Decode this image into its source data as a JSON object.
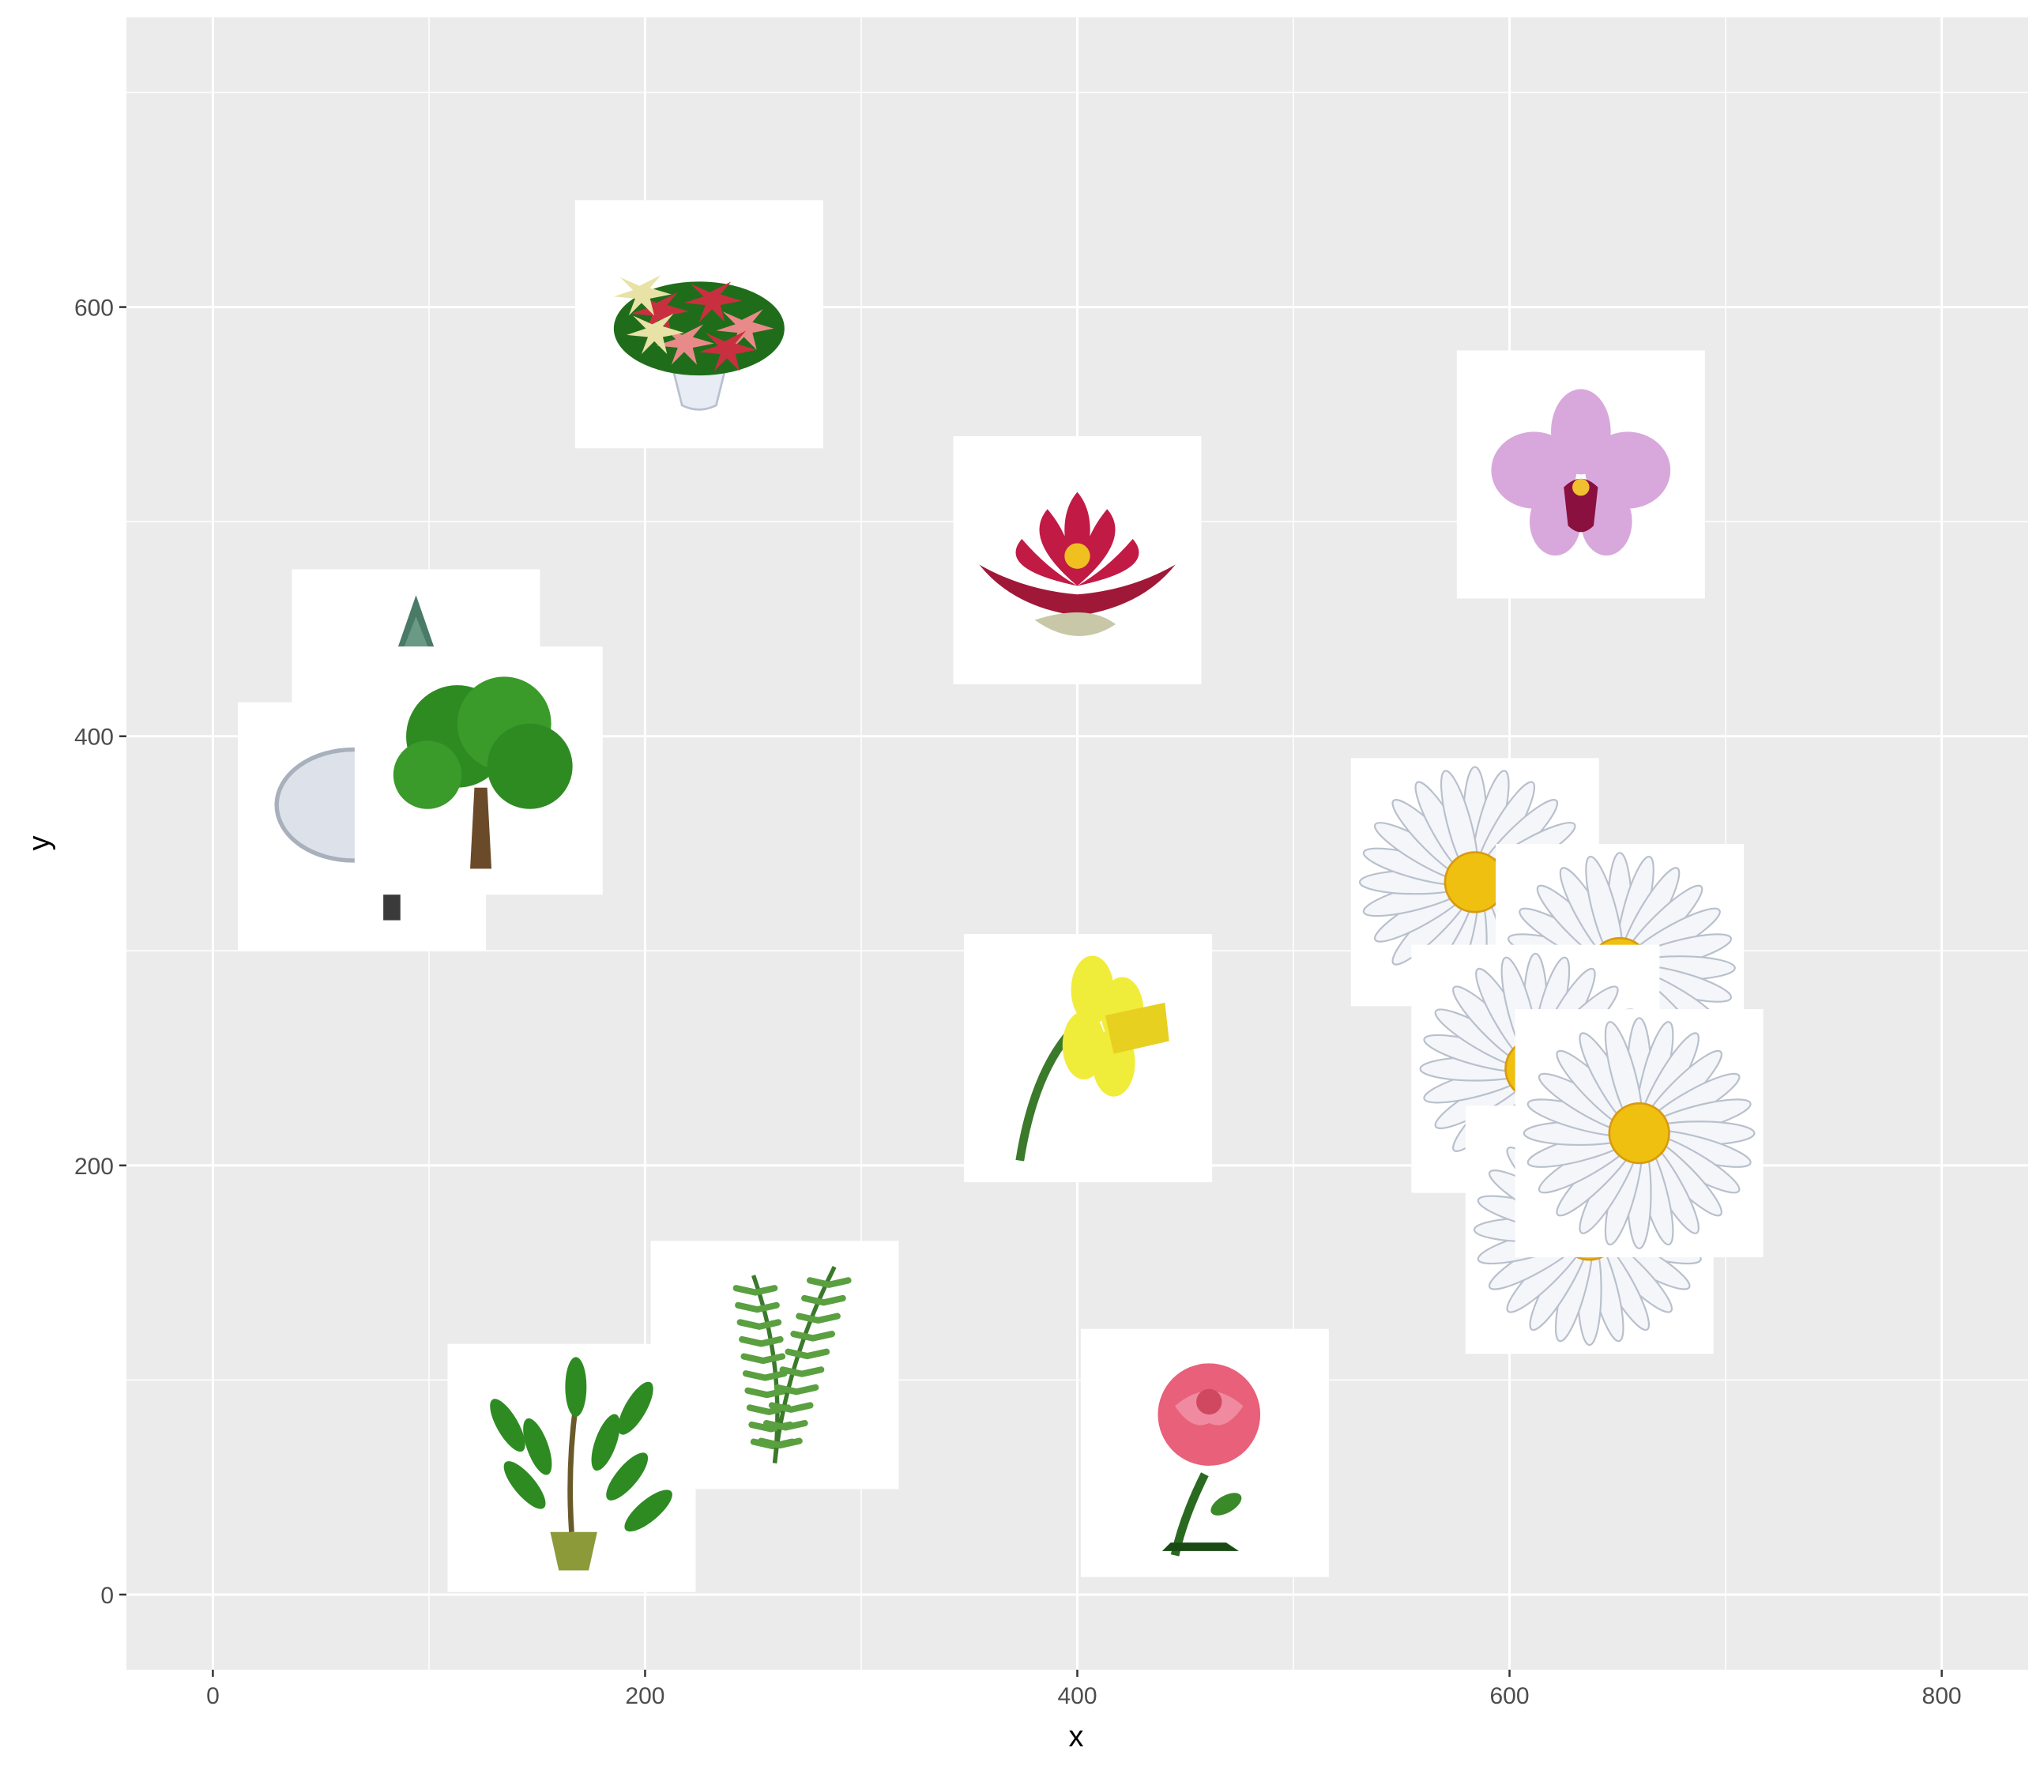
{
  "chart_data": {
    "type": "scatter",
    "title": "",
    "xlabel": "x",
    "ylabel": "y",
    "xlim": [
      -40,
      840
    ],
    "ylim": [
      -35,
      735
    ],
    "x_ticks": [
      0,
      200,
      400,
      600,
      800
    ],
    "y_ticks": [
      0,
      200,
      400,
      600
    ],
    "x_tick_labels": [
      "0",
      "200",
      "400",
      "600",
      "800"
    ],
    "y_tick_labels": [
      "0",
      "200",
      "400",
      "600"
    ],
    "grid": true,
    "legend": "none",
    "marker": "image",
    "points": [
      {
        "x": 225,
        "y": 592,
        "image": "poinsettia"
      },
      {
        "x": 400,
        "y": 482,
        "image": "water-lily"
      },
      {
        "x": 633,
        "y": 522,
        "image": "orchid"
      },
      {
        "x": 94,
        "y": 420,
        "image": "conifer"
      },
      {
        "x": 69,
        "y": 358,
        "image": "winter-tree"
      },
      {
        "x": 123,
        "y": 384,
        "image": "oak-tree"
      },
      {
        "x": 584,
        "y": 332,
        "image": "daisy"
      },
      {
        "x": 651,
        "y": 292,
        "image": "daisy"
      },
      {
        "x": 612,
        "y": 245,
        "image": "daisy"
      },
      {
        "x": 637,
        "y": 170,
        "image": "daisy"
      },
      {
        "x": 660,
        "y": 215,
        "image": "daisy"
      },
      {
        "x": 405,
        "y": 250,
        "image": "daffodil"
      },
      {
        "x": 260,
        "y": 107,
        "image": "fern"
      },
      {
        "x": 166,
        "y": 59,
        "image": "money-tree"
      },
      {
        "x": 459,
        "y": 66,
        "image": "rose"
      }
    ]
  },
  "colors": {
    "panel": "#ebebeb",
    "grid_major": "#ffffff",
    "axis_text": "#4d4d4d",
    "tile": "#ffffff",
    "leaf_green": "#2e8b22",
    "dark_green": "#1f6d1a",
    "poinsettia_red": "#c8303f",
    "poinsettia_pink": "#e98a8a",
    "lily_red": "#c01a45",
    "orchid_pink": "#d8a8dc",
    "daisy_white": "#f4f6fa",
    "daisy_yellow": "#f0c010",
    "daffodil_yellow": "#f0ec3a",
    "rose_pink": "#e8607a",
    "pot_olive": "#8c9a3a",
    "trunk_brown": "#6b4a2a",
    "frost_white": "#dde2ea"
  }
}
